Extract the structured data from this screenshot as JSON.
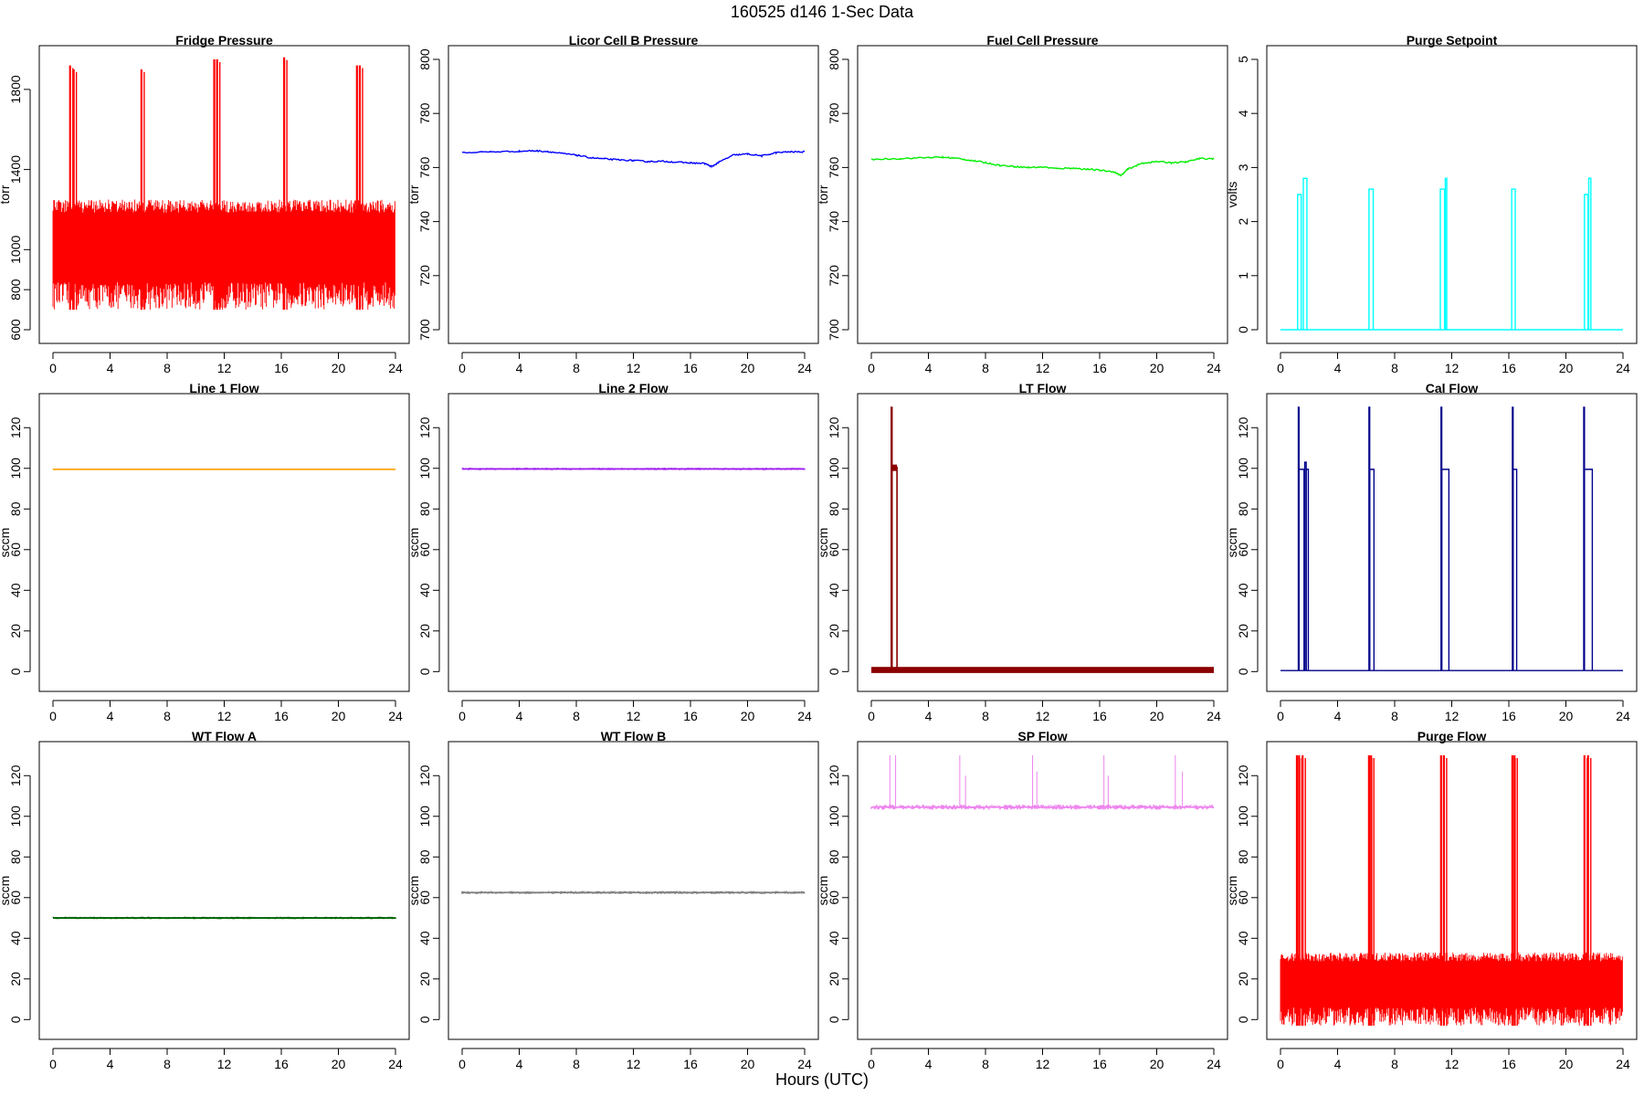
{
  "figure": {
    "title": "160525   d146   1-Sec Data",
    "xlabel": "Hours (UTC)"
  },
  "chart_data": [
    {
      "type": "line",
      "title": "Fridge Pressure",
      "ylabel": "torr",
      "color": "#ff0000",
      "xlim": [
        0,
        24
      ],
      "ylim": [
        600,
        1950
      ],
      "xticks": [
        0,
        4,
        8,
        12,
        16,
        20,
        24
      ],
      "yticks": [
        600,
        800,
        1000,
        1400,
        1800
      ],
      "style": "band",
      "band": [
        700,
        1250
      ],
      "spikes": [
        [
          1.2,
          1.92
        ],
        [
          1.45,
          1.9
        ],
        [
          6.2,
          1.9
        ],
        [
          11.3,
          1.95
        ],
        [
          11.5,
          1.95
        ],
        [
          16.2,
          1.96
        ],
        [
          21.3,
          1.92
        ],
        [
          21.5,
          1.92
        ]
      ],
      "spike_units": "kTorr (thousands)"
    },
    {
      "type": "line",
      "title": "Licor Cell B Pressure",
      "ylabel": "torr",
      "color": "#0000ff",
      "xlim": [
        0,
        24
      ],
      "ylim": [
        700,
        800
      ],
      "xticks": [
        0,
        4,
        8,
        12,
        16,
        20,
        24
      ],
      "yticks": [
        700,
        720,
        740,
        760,
        780,
        800
      ],
      "style": "line",
      "x": [
        0,
        2,
        4,
        5,
        6,
        7,
        8,
        9,
        10,
        11,
        12,
        13,
        14,
        15,
        16,
        17,
        17.5,
        18,
        19,
        20,
        21,
        22,
        23,
        24
      ],
      "y": [
        765.5,
        765.8,
        766.0,
        766.2,
        765.9,
        765.2,
        764.6,
        763.6,
        763.2,
        762.8,
        762.6,
        762.2,
        762.3,
        762.0,
        761.7,
        761.5,
        760.3,
        762.0,
        764.6,
        765.0,
        764.3,
        765.5,
        765.8,
        765.8
      ]
    },
    {
      "type": "line",
      "title": "Fuel Cell Pressure",
      "ylabel": "torr",
      "color": "#00ee00",
      "xlim": [
        0,
        24
      ],
      "ylim": [
        700,
        800
      ],
      "xticks": [
        0,
        4,
        8,
        12,
        16,
        20,
        24
      ],
      "yticks": [
        700,
        720,
        740,
        760,
        780,
        800
      ],
      "style": "line",
      "x": [
        0,
        2,
        4,
        5,
        6,
        7,
        8,
        9,
        10,
        11,
        12,
        13,
        14,
        15,
        16,
        17,
        17.5,
        18,
        19,
        20,
        21,
        22,
        23,
        24
      ],
      "y": [
        763.0,
        763.3,
        763.7,
        763.8,
        763.4,
        762.6,
        761.8,
        760.8,
        760.4,
        760.0,
        760.2,
        759.6,
        759.8,
        759.4,
        759.0,
        758.4,
        757.0,
        759.5,
        761.6,
        762.2,
        761.8,
        762.0,
        763.3,
        763.3
      ]
    },
    {
      "type": "line",
      "title": "Purge Setpoint",
      "ylabel": "volts",
      "color": "#00ffff",
      "xlim": [
        0,
        24
      ],
      "ylim": [
        0,
        5
      ],
      "xticks": [
        0,
        4,
        8,
        12,
        16,
        20,
        24
      ],
      "yticks": [
        0,
        1,
        2,
        3,
        4,
        5
      ],
      "style": "pulses",
      "baseline": 0,
      "pulses": [
        [
          1.2,
          1.45,
          2.5
        ],
        [
          1.6,
          1.85,
          2.8
        ],
        [
          6.2,
          6.5,
          2.6
        ],
        [
          11.2,
          11.5,
          2.6
        ],
        [
          11.55,
          11.65,
          2.8
        ],
        [
          16.2,
          16.45,
          2.6
        ],
        [
          21.3,
          21.55,
          2.5
        ],
        [
          21.6,
          21.75,
          2.8
        ]
      ]
    },
    {
      "type": "line",
      "title": "Line 1 Flow",
      "ylabel": "sccm",
      "color": "#ffa500",
      "xlim": [
        0,
        24
      ],
      "ylim": [
        -3,
        130
      ],
      "xticks": [
        0,
        4,
        8,
        12,
        16,
        20,
        24
      ],
      "yticks": [
        0,
        20,
        40,
        60,
        80,
        100,
        120
      ],
      "style": "flat",
      "level": 99.5,
      "noise": 0.4
    },
    {
      "type": "line",
      "title": "Line 2 Flow",
      "ylabel": "sccm",
      "color": "#a020f0",
      "xlim": [
        0,
        24
      ],
      "ylim": [
        -3,
        130
      ],
      "xticks": [
        0,
        4,
        8,
        12,
        16,
        20,
        24
      ],
      "yticks": [
        0,
        20,
        40,
        60,
        80,
        100,
        120
      ],
      "style": "flat",
      "level": 99.7,
      "noise": 1.2
    },
    {
      "type": "line",
      "title": "LT Flow",
      "ylabel": "sccm",
      "color": "#8b0000",
      "xlim": [
        0,
        24
      ],
      "ylim": [
        -3,
        130
      ],
      "xticks": [
        0,
        4,
        8,
        12,
        16,
        20,
        24
      ],
      "yticks": [
        0,
        20,
        40,
        60,
        80,
        100,
        120
      ],
      "style": "pulses",
      "baseline": 0.8,
      "noise": 1.5,
      "pulses": [
        [
          1.4,
          1.45,
          130
        ],
        [
          1.45,
          1.8,
          100.5
        ]
      ]
    },
    {
      "type": "line",
      "title": "Cal Flow",
      "ylabel": "sccm",
      "color": "#00008b",
      "xlim": [
        0,
        24
      ],
      "ylim": [
        -3,
        130
      ],
      "xticks": [
        0,
        4,
        8,
        12,
        16,
        20,
        24
      ],
      "yticks": [
        0,
        20,
        40,
        60,
        80,
        100,
        120
      ],
      "style": "pulses",
      "baseline": 0.5,
      "pulses": [
        [
          1.25,
          1.3,
          130
        ],
        [
          1.3,
          1.65,
          99.5
        ],
        [
          1.7,
          1.8,
          103
        ],
        [
          1.8,
          1.95,
          99.5
        ],
        [
          6.2,
          6.25,
          130
        ],
        [
          6.25,
          6.55,
          99.5
        ],
        [
          11.25,
          11.3,
          130
        ],
        [
          11.3,
          11.8,
          99.5
        ],
        [
          16.25,
          16.3,
          130
        ],
        [
          16.3,
          16.55,
          99.5
        ],
        [
          21.25,
          21.3,
          130
        ],
        [
          21.3,
          21.85,
          99.5
        ]
      ]
    },
    {
      "type": "line",
      "title": "WT Flow A",
      "ylabel": "sccm",
      "color": "#006400",
      "xlim": [
        0,
        24
      ],
      "ylim": [
        -3,
        130
      ],
      "xticks": [
        0,
        4,
        8,
        12,
        16,
        20,
        24
      ],
      "yticks": [
        0,
        20,
        40,
        60,
        80,
        100,
        120
      ],
      "style": "flat",
      "level": 50,
      "noise": 1.2
    },
    {
      "type": "line",
      "title": "WT Flow B",
      "ylabel": "sccm",
      "color": "#808080",
      "xlim": [
        0,
        24
      ],
      "ylim": [
        -3,
        130
      ],
      "xticks": [
        0,
        4,
        8,
        12,
        16,
        20,
        24
      ],
      "yticks": [
        0,
        20,
        40,
        60,
        80,
        100,
        120
      ],
      "style": "flat",
      "level": 62.5,
      "noise": 1.5
    },
    {
      "type": "line",
      "title": "SP Flow",
      "ylabel": "sccm",
      "color": "#ee82ee",
      "xlim": [
        0,
        24
      ],
      "ylim": [
        -3,
        130
      ],
      "xticks": [
        0,
        4,
        8,
        12,
        16,
        20,
        24
      ],
      "yticks": [
        0,
        20,
        40,
        60,
        80,
        100,
        120
      ],
      "style": "flat",
      "level": 104.5,
      "noise": 2.5,
      "spikes": [
        [
          1.3,
          130
        ],
        [
          1.7,
          130
        ],
        [
          6.2,
          130
        ],
        [
          6.6,
          120
        ],
        [
          11.3,
          130
        ],
        [
          11.6,
          122
        ],
        [
          16.3,
          130
        ],
        [
          16.6,
          120
        ],
        [
          21.3,
          130
        ],
        [
          21.8,
          122
        ]
      ]
    },
    {
      "type": "line",
      "title": "Purge Flow",
      "ylabel": "sccm",
      "color": "#ff0000",
      "xlim": [
        0,
        24
      ],
      "ylim": [
        -3,
        130
      ],
      "xticks": [
        0,
        4,
        8,
        12,
        16,
        20,
        24
      ],
      "yticks": [
        0,
        20,
        40,
        60,
        80,
        100,
        120
      ],
      "style": "band",
      "band": [
        -3,
        33
      ],
      "spikes": [
        [
          1.15,
          130
        ],
        [
          1.3,
          130
        ],
        [
          1.55,
          130
        ],
        [
          6.2,
          130
        ],
        [
          6.35,
          130
        ],
        [
          11.25,
          130
        ],
        [
          11.45,
          130
        ],
        [
          16.25,
          130
        ],
        [
          16.4,
          130
        ],
        [
          21.3,
          130
        ],
        [
          21.55,
          130
        ]
      ],
      "spike_units": "sccm"
    }
  ]
}
